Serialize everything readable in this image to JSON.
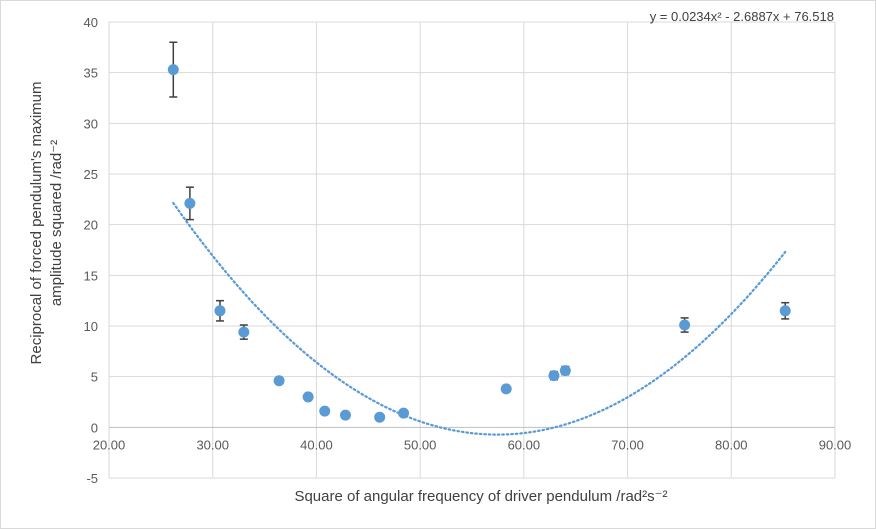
{
  "chart_data": {
    "type": "scatter",
    "xlabel": "Square of angular frequency of driver pendulum /rad²s⁻²",
    "ylabel_lines": [
      "Reciprocal of forced pendulum's maximum",
      "amplitude squared /rad⁻²"
    ],
    "xlim": [
      20,
      90
    ],
    "ylim": [
      -5,
      40
    ],
    "x_ticks": [
      "20.00",
      "30.00",
      "40.00",
      "50.00",
      "60.00",
      "70.00",
      "80.00",
      "90.00"
    ],
    "y_ticks": [
      "-5",
      "0",
      "5",
      "10",
      "15",
      "20",
      "25",
      "30",
      "35",
      "40"
    ],
    "grid": true,
    "points": [
      {
        "x": 26.2,
        "y": 35.3,
        "err": 2.7
      },
      {
        "x": 27.8,
        "y": 22.1,
        "err": 1.6
      },
      {
        "x": 30.7,
        "y": 11.5,
        "err": 1.0
      },
      {
        "x": 33.0,
        "y": 9.4,
        "err": 0.7
      },
      {
        "x": 36.4,
        "y": 4.6,
        "err": 0.2
      },
      {
        "x": 39.2,
        "y": 3.0,
        "err": 0.1
      },
      {
        "x": 40.8,
        "y": 1.6,
        "err": 0.1
      },
      {
        "x": 42.8,
        "y": 1.2,
        "err": 0.05
      },
      {
        "x": 46.1,
        "y": 1.0,
        "err": 0.05
      },
      {
        "x": 48.4,
        "y": 1.4,
        "err": 0.1
      },
      {
        "x": 58.3,
        "y": 3.8,
        "err": 0.2
      },
      {
        "x": 62.9,
        "y": 5.1,
        "err": 0.4
      },
      {
        "x": 64.0,
        "y": 5.6,
        "err": 0.4
      },
      {
        "x": 75.5,
        "y": 10.1,
        "err": 0.7
      },
      {
        "x": 85.2,
        "y": 11.5,
        "err": 0.8
      }
    ],
    "trendline": {
      "type": "polynomial-2",
      "a": 0.0234,
      "b": -2.6887,
      "c": 76.518,
      "x_range": [
        26.2,
        85.2
      ],
      "equation_label": "y = 0.0234x² - 2.6887x + 76.518"
    },
    "colors": {
      "marker": "#5b9bd5",
      "trendline": "#5b9bd5",
      "errorbar": "#404040",
      "grid": "#d9d9d9",
      "zero_axis": "#bfbfbf"
    }
  }
}
